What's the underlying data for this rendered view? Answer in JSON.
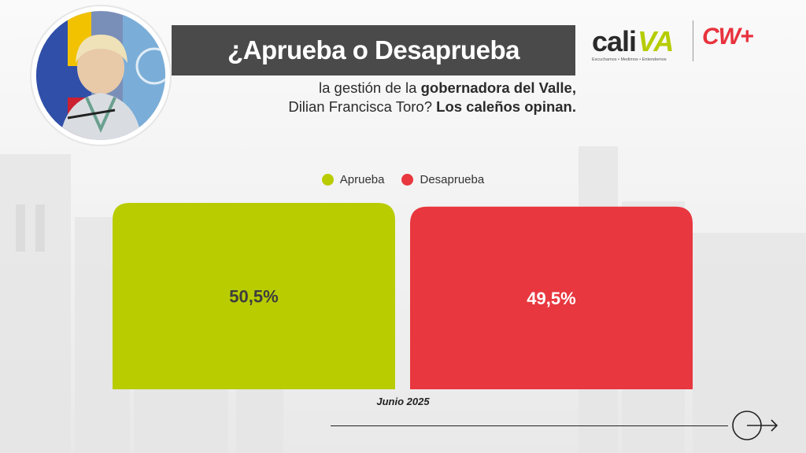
{
  "header": {
    "title": "¿Aprueba o Desaprueba",
    "subtitle_plain_1": "la gestión de la ",
    "subtitle_bold_1": "gobernadora del Valle,",
    "subtitle_plain_2": "Dilian Francisca Toro? ",
    "subtitle_bold_2": "Los caleños opinan."
  },
  "logos": {
    "cali_word": "cali",
    "cali_va": "VA",
    "cali_tagline": "Escuchamos • Medimos • Entendemos",
    "cw_logo": "CW+"
  },
  "chart_data": {
    "type": "bar",
    "categories": [
      "Aprueba",
      "Desaprueba"
    ],
    "values": [
      50.5,
      49.5
    ],
    "value_labels": [
      "50,5%",
      "49,5%"
    ],
    "colors": [
      "#b8cc00",
      "#e8373f"
    ],
    "label_colors": [
      "#3d3d3d",
      "#ffffff"
    ],
    "legend": [
      {
        "label": "Aprueba",
        "color": "#b8cc00"
      },
      {
        "label": "Desaprueba",
        "color": "#e8373f"
      }
    ],
    "legend_position": "top-center",
    "ylim": [
      0,
      50.5
    ],
    "grid": false,
    "period": "Junio 2025"
  },
  "footer": {
    "next_icon": "arrow-right-circle-icon"
  }
}
